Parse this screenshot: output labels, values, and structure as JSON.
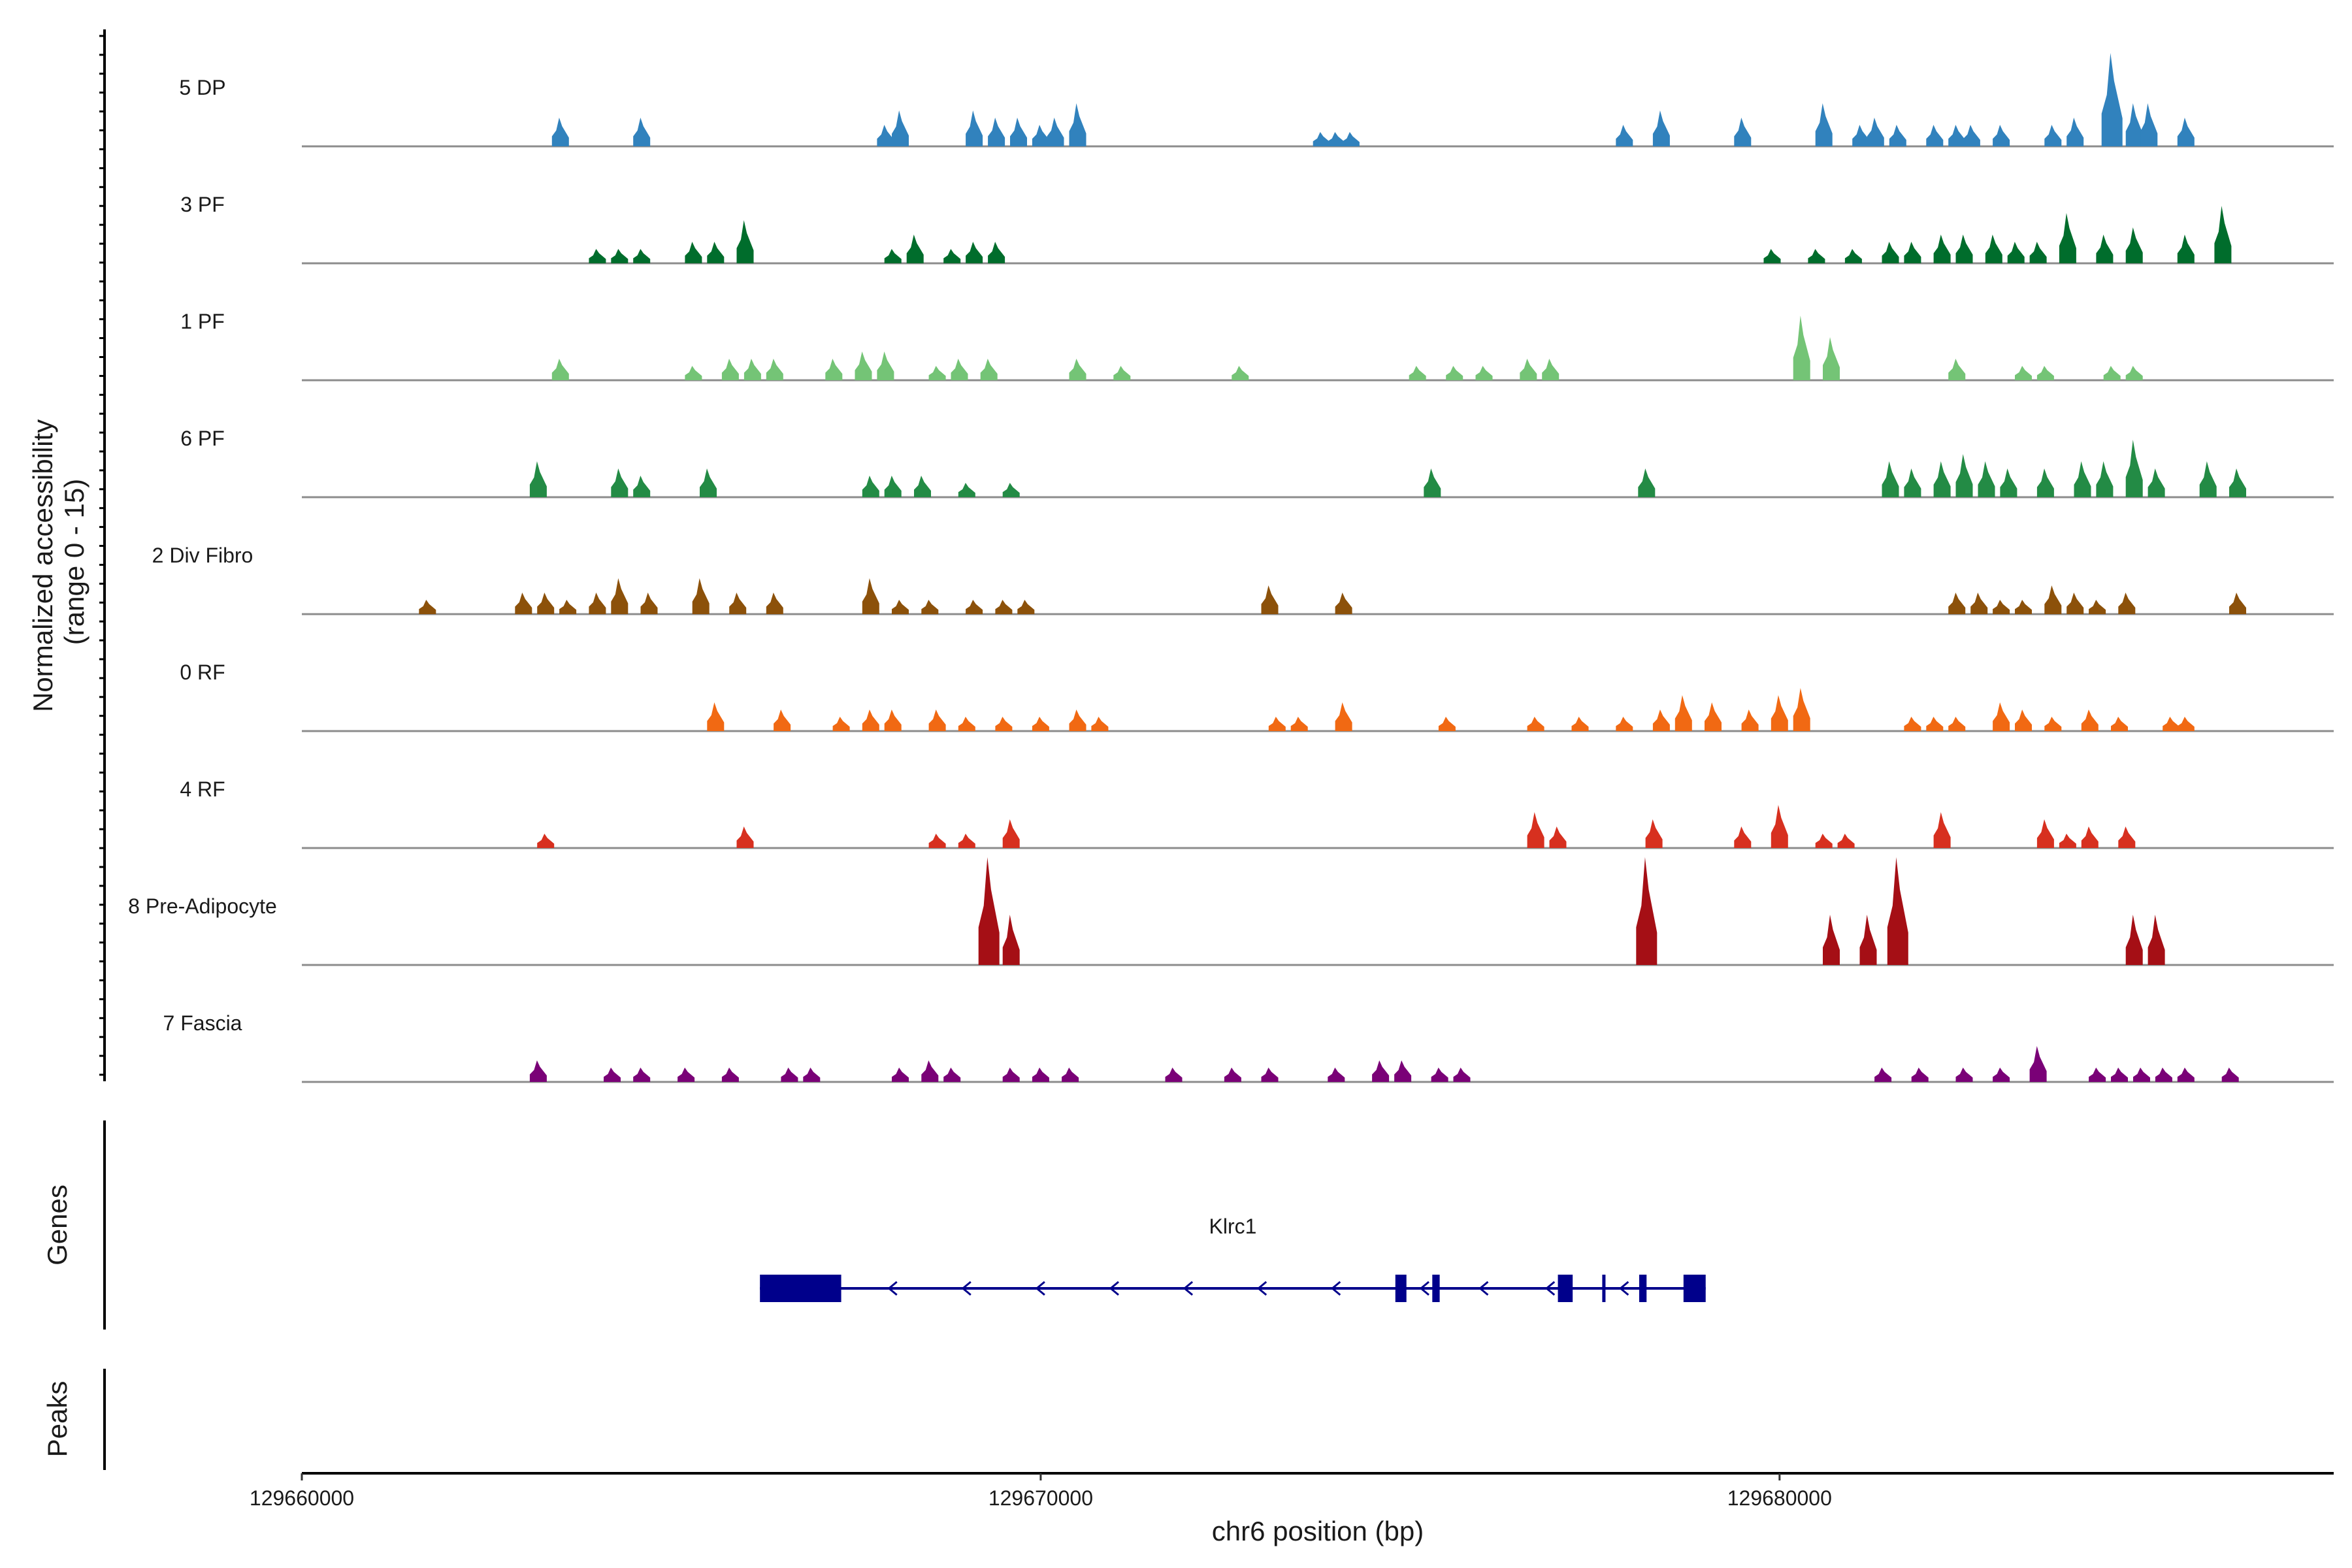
{
  "chart_data": {
    "type": "coverage",
    "ylabel_line1": "Normalized accessibility",
    "ylabel_line2": "(range 0 - 15)",
    "ylim": [
      0,
      15
    ],
    "xlabel": "chr6 position (bp)",
    "xlim": [
      129660000,
      129687500
    ],
    "xticks": [
      129660000,
      129670000,
      129680000
    ],
    "xtick_labels": [
      "129660000",
      "129670000",
      "129680000"
    ],
    "tracks": [
      {
        "name": "5 DP",
        "color": "#3182bd",
        "peaks": [
          [
            129663500,
            4
          ],
          [
            129664600,
            4
          ],
          [
            129667900,
            3
          ],
          [
            129668100,
            5
          ],
          [
            129669100,
            5
          ],
          [
            129669400,
            4
          ],
          [
            129669700,
            4
          ],
          [
            129670000,
            3
          ],
          [
            129670200,
            4
          ],
          [
            129670500,
            6
          ],
          [
            129673800,
            2
          ],
          [
            129674000,
            2
          ],
          [
            129674200,
            2
          ],
          [
            129677900,
            3
          ],
          [
            129678400,
            5
          ],
          [
            129679500,
            4
          ],
          [
            129680600,
            6
          ],
          [
            129681100,
            3
          ],
          [
            129681300,
            4
          ],
          [
            129681600,
            3
          ],
          [
            129682100,
            3
          ],
          [
            129682400,
            3
          ],
          [
            129682600,
            3
          ],
          [
            129683000,
            3
          ],
          [
            129683700,
            3
          ],
          [
            129684000,
            4
          ],
          [
            129684500,
            13
          ],
          [
            129684800,
            6
          ],
          [
            129685000,
            6
          ],
          [
            129685500,
            4
          ]
        ]
      },
      {
        "name": "3 PF",
        "color": "#006d2c",
        "peaks": [
          [
            129664000,
            2
          ],
          [
            129664300,
            2
          ],
          [
            129664600,
            2
          ],
          [
            129665300,
            3
          ],
          [
            129665600,
            3
          ],
          [
            129666000,
            6
          ],
          [
            129668000,
            2
          ],
          [
            129668300,
            4
          ],
          [
            129668800,
            2
          ],
          [
            129669100,
            3
          ],
          [
            129669400,
            3
          ],
          [
            129679900,
            2
          ],
          [
            129680500,
            2
          ],
          [
            129681000,
            2
          ],
          [
            129681500,
            3
          ],
          [
            129681800,
            3
          ],
          [
            129682200,
            4
          ],
          [
            129682500,
            4
          ],
          [
            129682900,
            4
          ],
          [
            129683200,
            3
          ],
          [
            129683500,
            3
          ],
          [
            129683900,
            7
          ],
          [
            129684400,
            4
          ],
          [
            129684800,
            5
          ],
          [
            129685500,
            4
          ],
          [
            129686000,
            8
          ]
        ]
      },
      {
        "name": "1 PF",
        "color": "#74c476",
        "peaks": [
          [
            129663500,
            3
          ],
          [
            129665300,
            2
          ],
          [
            129665800,
            3
          ],
          [
            129666100,
            3
          ],
          [
            129666400,
            3
          ],
          [
            129667200,
            3
          ],
          [
            129667600,
            4
          ],
          [
            129667900,
            4
          ],
          [
            129668600,
            2
          ],
          [
            129668900,
            3
          ],
          [
            129669300,
            3
          ],
          [
            129670500,
            3
          ],
          [
            129671100,
            2
          ],
          [
            129672700,
            2
          ],
          [
            129675100,
            2
          ],
          [
            129675600,
            2
          ],
          [
            129676000,
            2
          ],
          [
            129676600,
            3
          ],
          [
            129676900,
            3
          ],
          [
            129680300,
            9
          ],
          [
            129680700,
            6
          ],
          [
            129682400,
            3
          ],
          [
            129683300,
            2
          ],
          [
            129683600,
            2
          ],
          [
            129684500,
            2
          ],
          [
            129684800,
            2
          ]
        ]
      },
      {
        "name": "6 PF",
        "color": "#238b45",
        "peaks": [
          [
            129663200,
            5
          ],
          [
            129664300,
            4
          ],
          [
            129664600,
            3
          ],
          [
            129665500,
            4
          ],
          [
            129667700,
            3
          ],
          [
            129668000,
            3
          ],
          [
            129668400,
            3
          ],
          [
            129669000,
            2
          ],
          [
            129669600,
            2
          ],
          [
            129675300,
            4
          ],
          [
            129678200,
            4
          ],
          [
            129681500,
            5
          ],
          [
            129681800,
            4
          ],
          [
            129682200,
            5
          ],
          [
            129682500,
            6
          ],
          [
            129682800,
            5
          ],
          [
            129683100,
            4
          ],
          [
            129683600,
            4
          ],
          [
            129684100,
            5
          ],
          [
            129684400,
            5
          ],
          [
            129684800,
            8
          ],
          [
            129685100,
            4
          ],
          [
            129685800,
            5
          ],
          [
            129686200,
            4
          ]
        ]
      },
      {
        "name": "2 Div Fibro",
        "color": "#8c510a",
        "peaks": [
          [
            129661700,
            2
          ],
          [
            129663000,
            3
          ],
          [
            129663300,
            3
          ],
          [
            129663600,
            2
          ],
          [
            129664000,
            3
          ],
          [
            129664300,
            5
          ],
          [
            129664700,
            3
          ],
          [
            129665400,
            5
          ],
          [
            129665900,
            3
          ],
          [
            129666400,
            3
          ],
          [
            129667700,
            5
          ],
          [
            129668100,
            2
          ],
          [
            129668500,
            2
          ],
          [
            129669100,
            2
          ],
          [
            129669500,
            2
          ],
          [
            129669800,
            2
          ],
          [
            129673100,
            4
          ],
          [
            129674100,
            3
          ],
          [
            129682400,
            3
          ],
          [
            129682700,
            3
          ],
          [
            129683000,
            2
          ],
          [
            129683300,
            2
          ],
          [
            129683700,
            4
          ],
          [
            129684000,
            3
          ],
          [
            129684300,
            2
          ],
          [
            129684700,
            3
          ],
          [
            129686200,
            3
          ]
        ]
      },
      {
        "name": "0 RF",
        "color": "#f16913",
        "peaks": [
          [
            129665600,
            4
          ],
          [
            129666500,
            3
          ],
          [
            129667300,
            2
          ],
          [
            129667700,
            3
          ],
          [
            129668000,
            3
          ],
          [
            129668600,
            3
          ],
          [
            129669000,
            2
          ],
          [
            129669500,
            2
          ],
          [
            129670000,
            2
          ],
          [
            129670500,
            3
          ],
          [
            129670800,
            2
          ],
          [
            129673200,
            2
          ],
          [
            129673500,
            2
          ],
          [
            129674100,
            4
          ],
          [
            129675500,
            2
          ],
          [
            129676700,
            2
          ],
          [
            129677300,
            2
          ],
          [
            129677900,
            2
          ],
          [
            129678400,
            3
          ],
          [
            129678700,
            5
          ],
          [
            129679100,
            4
          ],
          [
            129679600,
            3
          ],
          [
            129680000,
            5
          ],
          [
            129680300,
            6
          ],
          [
            129681800,
            2
          ],
          [
            129682100,
            2
          ],
          [
            129682400,
            2
          ],
          [
            129683000,
            4
          ],
          [
            129683300,
            3
          ],
          [
            129683700,
            2
          ],
          [
            129684200,
            3
          ],
          [
            129684600,
            2
          ],
          [
            129685300,
            2
          ],
          [
            129685500,
            2
          ]
        ]
      },
      {
        "name": "4 RF",
        "color": "#d7301f",
        "peaks": [
          [
            129663300,
            2
          ],
          [
            129666000,
            3
          ],
          [
            129668600,
            2
          ],
          [
            129669000,
            2
          ],
          [
            129669600,
            4
          ],
          [
            129676700,
            5
          ],
          [
            129677000,
            3
          ],
          [
            129678300,
            4
          ],
          [
            129679500,
            3
          ],
          [
            129680000,
            6
          ],
          [
            129680600,
            2
          ],
          [
            129680900,
            2
          ],
          [
            129682200,
            5
          ],
          [
            129683600,
            4
          ],
          [
            129683900,
            2
          ],
          [
            129684200,
            3
          ],
          [
            129684700,
            3
          ]
        ]
      },
      {
        "name": "8 Pre-Adipocyte",
        "color": "#a50f15",
        "peaks": [
          [
            129669300,
            15
          ],
          [
            129669600,
            7
          ],
          [
            129678200,
            15
          ],
          [
            129680700,
            7
          ],
          [
            129681200,
            7
          ],
          [
            129681600,
            15
          ],
          [
            129684800,
            7
          ],
          [
            129685100,
            7
          ]
        ]
      },
      {
        "name": "7 Fascia",
        "color": "#7a0177",
        "peaks": [
          [
            129663200,
            3
          ],
          [
            129664200,
            2
          ],
          [
            129664600,
            2
          ],
          [
            129665200,
            2
          ],
          [
            129665800,
            2
          ],
          [
            129666600,
            2
          ],
          [
            129666900,
            2
          ],
          [
            129668100,
            2
          ],
          [
            129668500,
            3
          ],
          [
            129668800,
            2
          ],
          [
            129669600,
            2
          ],
          [
            129670000,
            2
          ],
          [
            129670400,
            2
          ],
          [
            129671800,
            2
          ],
          [
            129672600,
            2
          ],
          [
            129673100,
            2
          ],
          [
            129674000,
            2
          ],
          [
            129674600,
            3
          ],
          [
            129674900,
            3
          ],
          [
            129675400,
            2
          ],
          [
            129675700,
            2
          ],
          [
            129681400,
            2
          ],
          [
            129681900,
            2
          ],
          [
            129682500,
            2
          ],
          [
            129683000,
            2
          ],
          [
            129683500,
            5
          ],
          [
            129684300,
            2
          ],
          [
            129684600,
            2
          ],
          [
            129684900,
            2
          ],
          [
            129685200,
            2
          ],
          [
            129685500,
            2
          ],
          [
            129686100,
            2
          ]
        ]
      }
    ],
    "genes_label": "Genes",
    "peaks_label": "Peaks",
    "gene": {
      "name": "Klrc1",
      "strand": "-",
      "start": 129666200,
      "end": 129679000,
      "exons": [
        [
          129666200,
          129667300
        ],
        [
          129674800,
          129674950
        ],
        [
          129675300,
          129675400
        ],
        [
          129677000,
          129677200
        ],
        [
          129677600,
          129677630
        ],
        [
          129678100,
          129678200
        ],
        [
          129678700,
          129679000
        ]
      ],
      "arrows": [
        129668000,
        129669000,
        129670000,
        129671000,
        129672000,
        129673000,
        129674000,
        129675200,
        129676000,
        129676900,
        129677900
      ]
    }
  }
}
